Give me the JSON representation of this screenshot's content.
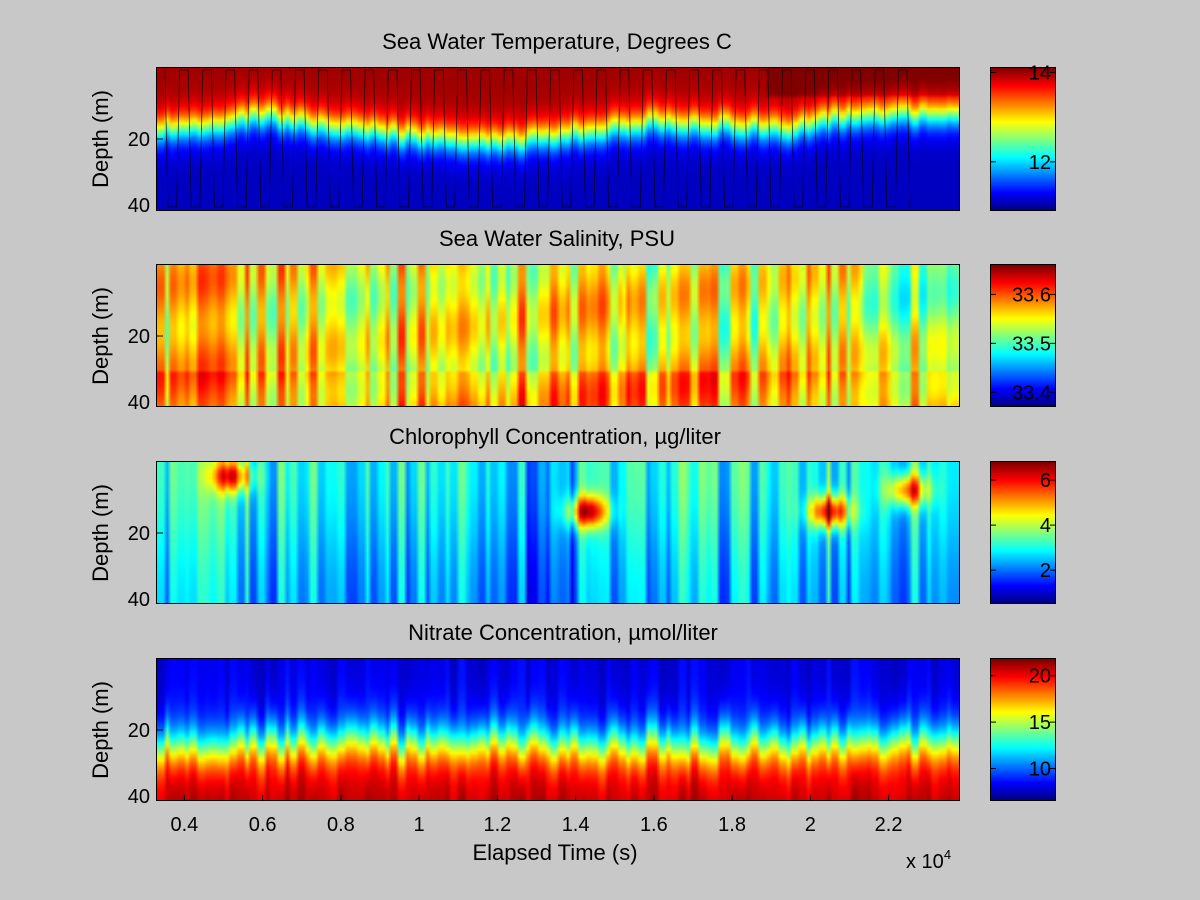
{
  "figure": {
    "background": "#c8c8c8",
    "colormap": "jet"
  },
  "chart_data": [
    {
      "type": "heatmap",
      "title": "Sea Water Temperature, Degrees C",
      "xlabel": "",
      "ylabel": "Depth (m)",
      "xlim": [
        3300,
        23800
      ],
      "ylim": [
        40,
        0
      ],
      "yticks": [
        20,
        40
      ],
      "yticklabels": [
        "20",
        "40"
      ],
      "color_range": [
        10.9,
        14.1
      ],
      "colorbar_ticks": [
        12,
        14
      ],
      "colorbar_ticklabels": [
        "12",
        "14"
      ],
      "field": "temperature",
      "profile_tracks": true,
      "thermocline_depth_m": [
        [
          3300,
          17
        ],
        [
          5000,
          15
        ],
        [
          6000,
          13
        ],
        [
          8000,
          17
        ],
        [
          10000,
          19
        ],
        [
          12000,
          21
        ],
        [
          14000,
          18
        ],
        [
          16000,
          15
        ],
        [
          18000,
          16
        ],
        [
          19500,
          17
        ],
        [
          20500,
          14
        ],
        [
          22000,
          13
        ],
        [
          23800,
          13
        ]
      ]
    },
    {
      "type": "heatmap",
      "title": "Sea Water Salinity, PSU",
      "xlabel": "",
      "ylabel": "Depth (m)",
      "xlim": [
        3300,
        23800
      ],
      "ylim": [
        40,
        0
      ],
      "yticks": [
        20,
        40
      ],
      "yticklabels": [
        "20",
        "40"
      ],
      "color_range": [
        33.37,
        33.66
      ],
      "colorbar_ticks": [
        33.4,
        33.5,
        33.6
      ],
      "colorbar_ticklabels": [
        "33.4",
        "33.5",
        "33.6"
      ],
      "field": "salinity"
    },
    {
      "type": "heatmap",
      "title": "Chlorophyll Concentration, µg/liter",
      "xlabel": "",
      "ylabel": "Depth (m)",
      "xlim": [
        3300,
        23800
      ],
      "ylim": [
        40,
        0
      ],
      "yticks": [
        20,
        40
      ],
      "yticklabels": [
        "20",
        "40"
      ],
      "color_range": [
        0.5,
        6.8
      ],
      "colorbar_ticks": [
        2,
        4,
        6
      ],
      "colorbar_ticklabels": [
        "2",
        "4",
        "6"
      ],
      "field": "chlorophyll",
      "hotspots": [
        {
          "time": 5200,
          "depth_m": 4,
          "value": 6.0
        },
        {
          "time": 14300,
          "depth_m": 14,
          "value": 6.5
        },
        {
          "time": 20500,
          "depth_m": 14,
          "value": 6.8
        },
        {
          "time": 22500,
          "depth_m": 8,
          "value": 6.0
        }
      ]
    },
    {
      "type": "heatmap",
      "title": "Nitrate Concentration, µmol/liter",
      "xlabel": "Elapsed Time (s)",
      "ylabel": "Depth (m)",
      "xlim": [
        3300,
        23800
      ],
      "ylim": [
        40,
        0
      ],
      "xticks": [
        4000,
        6000,
        8000,
        10000,
        12000,
        14000,
        16000,
        18000,
        20000,
        22000
      ],
      "xticklabels": [
        "0.4",
        "0.6",
        "0.8",
        "1",
        "1.2",
        "1.4",
        "1.6",
        "1.8",
        "2",
        "2.2"
      ],
      "x_multiplier_label": "x 10",
      "x_multiplier_exponent": "4",
      "yticks": [
        20,
        40
      ],
      "yticklabels": [
        "20",
        "40"
      ],
      "color_range": [
        6.5,
        21.8
      ],
      "colorbar_ticks": [
        10,
        15,
        20
      ],
      "colorbar_ticklabels": [
        "10",
        "15",
        "20"
      ],
      "field": "nitrate"
    }
  ]
}
